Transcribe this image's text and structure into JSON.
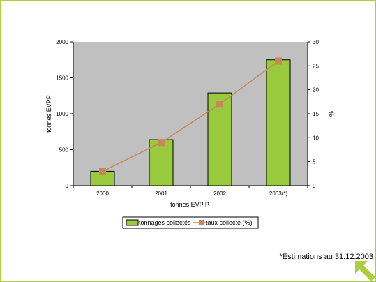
{
  "chart_data": {
    "type": "bar+line",
    "categories": [
      "2000",
      "2001",
      "2002",
      "2003(*)"
    ],
    "series": [
      {
        "name": "tonnages collectés",
        "type": "bar",
        "axis": "left",
        "values": [
          200,
          640,
          1290,
          1750
        ]
      },
      {
        "name": "taux collecte (%)",
        "type": "line",
        "axis": "right",
        "values": [
          3,
          9,
          17,
          26
        ]
      }
    ],
    "xlabel": "tonnes EVP P",
    "ylabel": "tonnes EVPP",
    "y2label": "%",
    "ylim": [
      0,
      2000
    ],
    "y2lim": [
      0,
      30
    ],
    "yticks": [
      "0",
      "500",
      "1000",
      "1500",
      "2000"
    ],
    "y2ticks": [
      "0",
      "5",
      "10",
      "15",
      "20",
      "25",
      "30"
    ],
    "grid": false,
    "legend": "bottom-center",
    "colors": {
      "plot_bg": "#c0c0c0",
      "bar": "#99c93c",
      "line": "#c8875a",
      "frame": "#a9cf3c"
    }
  },
  "footnote": "*Estimations au 31.12.2003",
  "icons": {
    "corner": "arrow-up-left-icon"
  }
}
